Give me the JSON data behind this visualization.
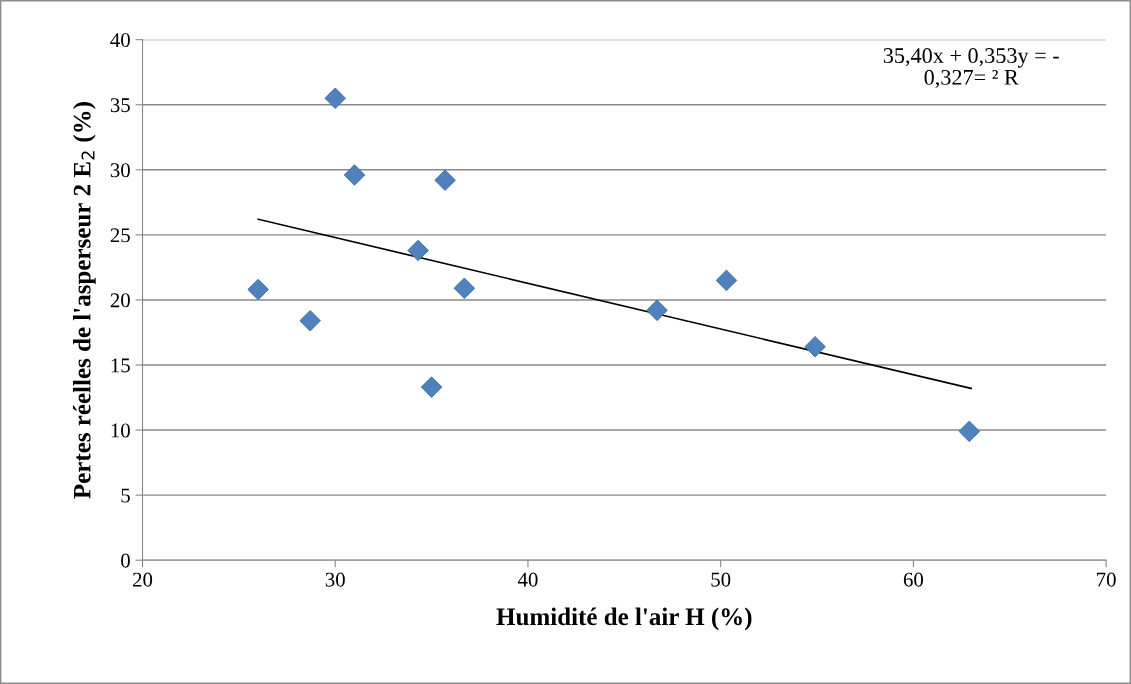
{
  "chart_data": {
    "type": "scatter",
    "xlabel": "Humidité de l'air H (%)",
    "ylabel": "Pertes réelles de l'asperseur 2 E$_{2}$ (%)",
    "series": [
      {
        "type": "scatter",
        "color": "#4f81bd",
        "marker": "diamond",
        "x": [
          26.0,
          28.7,
          30.0,
          31.0,
          34.3,
          35.0,
          35.7,
          36.7,
          46.7,
          50.3,
          54.9,
          62.9
        ],
        "values": [
          20.8,
          18.4,
          35.5,
          29.6,
          23.8,
          13.3,
          29.2,
          20.9,
          19.2,
          21.5,
          16.4,
          9.9
        ]
      },
      {
        "type": "line",
        "color": "#000000",
        "marker": "none",
        "x": [
          26.0,
          63.0
        ],
        "values": [
          26.2,
          13.2
        ]
      }
    ],
    "xlim": [
      20,
      70
    ],
    "xticks": [
      20,
      30,
      40,
      50,
      60,
      70
    ],
    "ylim": [
      0,
      40
    ],
    "yticks": [
      0,
      5,
      10,
      15,
      20,
      25,
      30,
      35,
      40
    ],
    "grid": "y",
    "legend": false,
    "annotations": [
      "35,40x + 0,353y = -\n0,327= ² R"
    ]
  }
}
